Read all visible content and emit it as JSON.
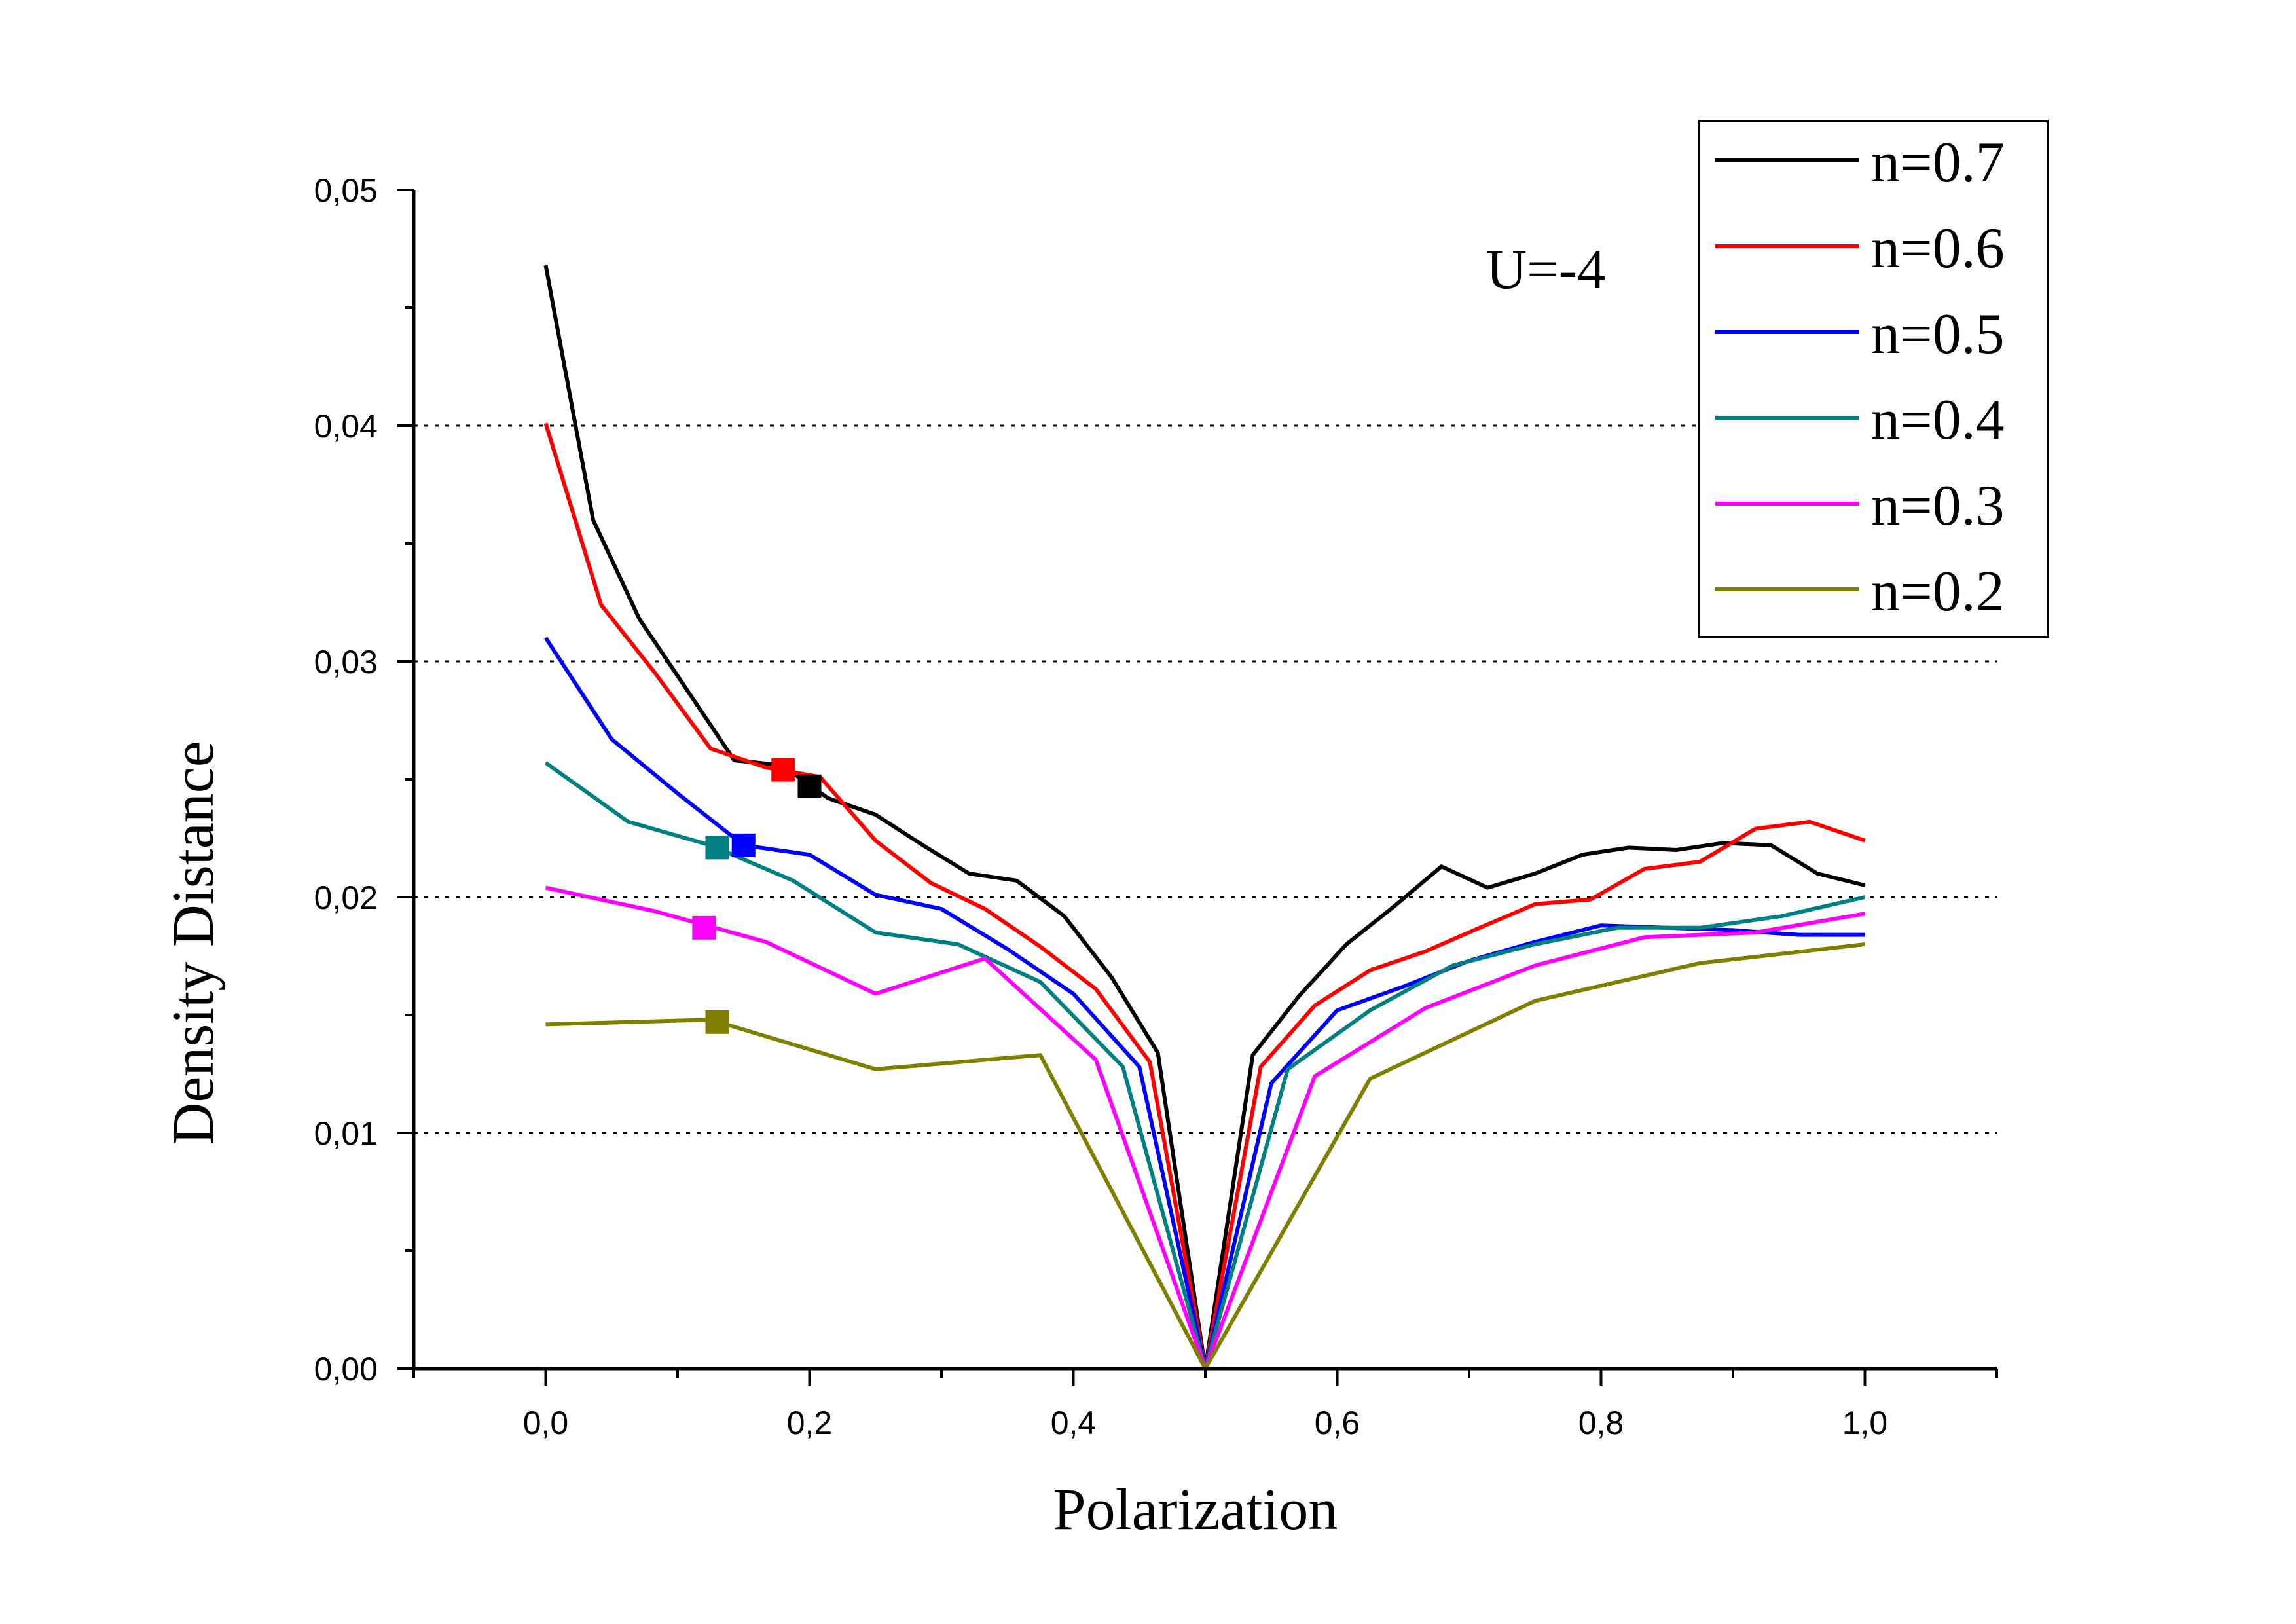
{
  "chart_data": {
    "type": "line",
    "title": "",
    "xlabel": "Polarization",
    "ylabel": "Density Distance",
    "xlim": [
      -0.1,
      1.1
    ],
    "ylim": [
      0.0,
      0.05
    ],
    "xticks": [
      0.0,
      0.2,
      0.4,
      0.6,
      0.8,
      1.0
    ],
    "xtick_labels": [
      "0,0",
      "0,2",
      "0,4",
      "0,6",
      "0,8",
      "1,0"
    ],
    "yticks": [
      0.0,
      0.01,
      0.02,
      0.03,
      0.04,
      0.05
    ],
    "ytick_labels": [
      "0,00",
      "0,01",
      "0,02",
      "0,03",
      "0,04",
      "0,05"
    ],
    "grid": "horizontal dotted at 0,01 0,02 0,03 0,04",
    "legend_position": "top-right",
    "annotation": "U=-4",
    "series": [
      {
        "name": "n=0.7",
        "color": "#000000",
        "x": [
          0.0,
          0.036,
          0.071,
          0.107,
          0.143,
          0.179,
          0.214,
          0.25,
          0.286,
          0.321,
          0.357,
          0.393,
          0.429,
          0.464,
          0.5,
          0.536,
          0.571,
          0.607,
          0.643,
          0.679,
          0.714,
          0.75,
          0.786,
          0.821,
          0.857,
          0.893,
          0.929,
          0.964,
          1.0
        ],
        "y": [
          0.0468,
          0.036,
          0.0318,
          0.0288,
          0.0258,
          0.0256,
          0.0242,
          0.0235,
          0.0222,
          0.021,
          0.0207,
          0.0192,
          0.0166,
          0.0134,
          0.0,
          0.0133,
          0.0158,
          0.018,
          0.0196,
          0.0213,
          0.0204,
          0.021,
          0.0218,
          0.0221,
          0.022,
          0.0223,
          0.0222,
          0.021,
          0.0205
        ],
        "marker": {
          "x": 0.2,
          "y": 0.0247
        }
      },
      {
        "name": "n=0.6",
        "color": "#ff0000",
        "x": [
          0.0,
          0.042,
          0.083,
          0.125,
          0.167,
          0.208,
          0.25,
          0.292,
          0.333,
          0.375,
          0.417,
          0.458,
          0.5,
          0.542,
          0.583,
          0.625,
          0.667,
          0.708,
          0.75,
          0.792,
          0.833,
          0.875,
          0.917,
          0.958,
          1.0
        ],
        "y": [
          0.0401,
          0.0324,
          0.0295,
          0.0263,
          0.0255,
          0.0251,
          0.0224,
          0.0206,
          0.0195,
          0.0179,
          0.0161,
          0.013,
          0.0,
          0.0128,
          0.0154,
          0.0169,
          0.0177,
          0.0187,
          0.0197,
          0.0199,
          0.0212,
          0.0215,
          0.0229,
          0.0232,
          0.0224
        ],
        "marker": {
          "x": 0.18,
          "y": 0.0254
        }
      },
      {
        "name": "n=0.5",
        "color": "#0000ff",
        "x": [
          0.0,
          0.05,
          0.1,
          0.15,
          0.2,
          0.25,
          0.3,
          0.35,
          0.4,
          0.45,
          0.5,
          0.55,
          0.6,
          0.65,
          0.7,
          0.75,
          0.8,
          0.85,
          0.9,
          0.95,
          1.0
        ],
        "y": [
          0.031,
          0.0267,
          0.0244,
          0.0222,
          0.0218,
          0.0201,
          0.0195,
          0.0178,
          0.0159,
          0.0128,
          0.0,
          0.0121,
          0.0152,
          0.0162,
          0.0173,
          0.0181,
          0.0188,
          0.0187,
          0.0186,
          0.0184,
          0.0184
        ],
        "marker": {
          "x": 0.15,
          "y": 0.0222
        }
      },
      {
        "name": "n=0.4",
        "color": "#008080",
        "x": [
          0.0,
          0.0625,
          0.125,
          0.1875,
          0.25,
          0.3125,
          0.375,
          0.4375,
          0.5,
          0.5625,
          0.625,
          0.6875,
          0.75,
          0.8125,
          0.875,
          0.9375,
          1.0
        ],
        "y": [
          0.0257,
          0.0232,
          0.0222,
          0.0207,
          0.0185,
          0.018,
          0.0164,
          0.0128,
          0.0,
          0.0127,
          0.0152,
          0.0171,
          0.018,
          0.0187,
          0.0187,
          0.0192,
          0.02
        ],
        "marker": {
          "x": 0.13,
          "y": 0.0221
        }
      },
      {
        "name": "n=0.3",
        "color": "#ff00ff",
        "x": [
          0.0,
          0.083,
          0.167,
          0.25,
          0.333,
          0.417,
          0.5,
          0.583,
          0.667,
          0.75,
          0.833,
          0.917,
          1.0
        ],
        "y": [
          0.0204,
          0.0194,
          0.0181,
          0.0159,
          0.0174,
          0.0131,
          0.0,
          0.0124,
          0.0153,
          0.0171,
          0.0183,
          0.0185,
          0.0193
        ],
        "marker": {
          "x": 0.12,
          "y": 0.0187
        }
      },
      {
        "name": "n=0.2",
        "color": "#808000",
        "x": [
          0.0,
          0.125,
          0.25,
          0.375,
          0.5,
          0.625,
          0.75,
          0.875,
          1.0
        ],
        "y": [
          0.0146,
          0.0148,
          0.0127,
          0.0133,
          0.0,
          0.0123,
          0.0156,
          0.0172,
          0.018
        ],
        "marker": {
          "x": 0.13,
          "y": 0.0147
        }
      }
    ]
  }
}
